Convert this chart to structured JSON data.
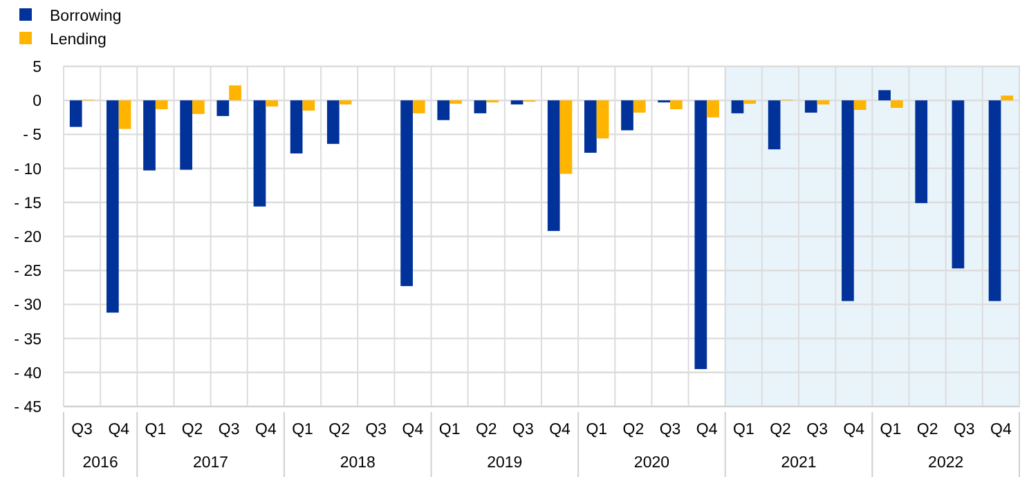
{
  "chart_data": {
    "type": "bar",
    "categories": [
      "Q3",
      "Q4",
      "Q1",
      "Q2",
      "Q3",
      "Q4",
      "Q1",
      "Q2",
      "Q3",
      "Q4",
      "Q1",
      "Q2",
      "Q3",
      "Q4",
      "Q1",
      "Q2",
      "Q3",
      "Q4",
      "Q1",
      "Q2",
      "Q3",
      "Q4",
      "Q1",
      "Q2",
      "Q3",
      "Q4"
    ],
    "series": [
      {
        "name": "Borrowing",
        "color": "#003299",
        "values": [
          -3.9,
          -31.2,
          -10.3,
          -10.2,
          -2.3,
          -15.6,
          -7.8,
          -6.4,
          0,
          -27.3,
          -2.9,
          -1.9,
          -0.6,
          -19.2,
          -7.7,
          -4.4,
          -0.3,
          -39.5,
          -1.9,
          -7.2,
          -1.8,
          -29.5,
          1.5,
          -15.1,
          -24.7,
          -29.5
        ]
      },
      {
        "name": "Lending",
        "color": "#ffb400",
        "values": [
          0.1,
          -4.2,
          -1.3,
          -2.0,
          2.2,
          -0.9,
          -1.5,
          -0.6,
          0,
          -1.9,
          -0.5,
          -0.3,
          -0.2,
          -10.8,
          -5.6,
          -1.8,
          -1.3,
          -2.5,
          -0.5,
          0.1,
          -0.6,
          -1.4,
          -1.1,
          0,
          0,
          0.7
        ]
      }
    ],
    "ylim": [
      -45,
      5
    ],
    "yticks": [
      {
        "value": -45,
        "label": "- 45"
      },
      {
        "value": -40,
        "label": "- 40"
      },
      {
        "value": -35,
        "label": "- 35"
      },
      {
        "value": -30,
        "label": "- 30"
      },
      {
        "value": -25,
        "label": "- 25"
      },
      {
        "value": -20,
        "label": "- 20"
      },
      {
        "value": -15,
        "label": "- 15"
      },
      {
        "value": -10,
        "label": "- 10"
      },
      {
        "value": -5,
        "label": "- 5"
      },
      0,
      5
    ],
    "grid": true,
    "legend": "top left",
    "annotations": [
      "2016",
      "2017",
      "2018",
      "2019",
      "2020",
      "2021",
      "2022"
    ]
  }
}
